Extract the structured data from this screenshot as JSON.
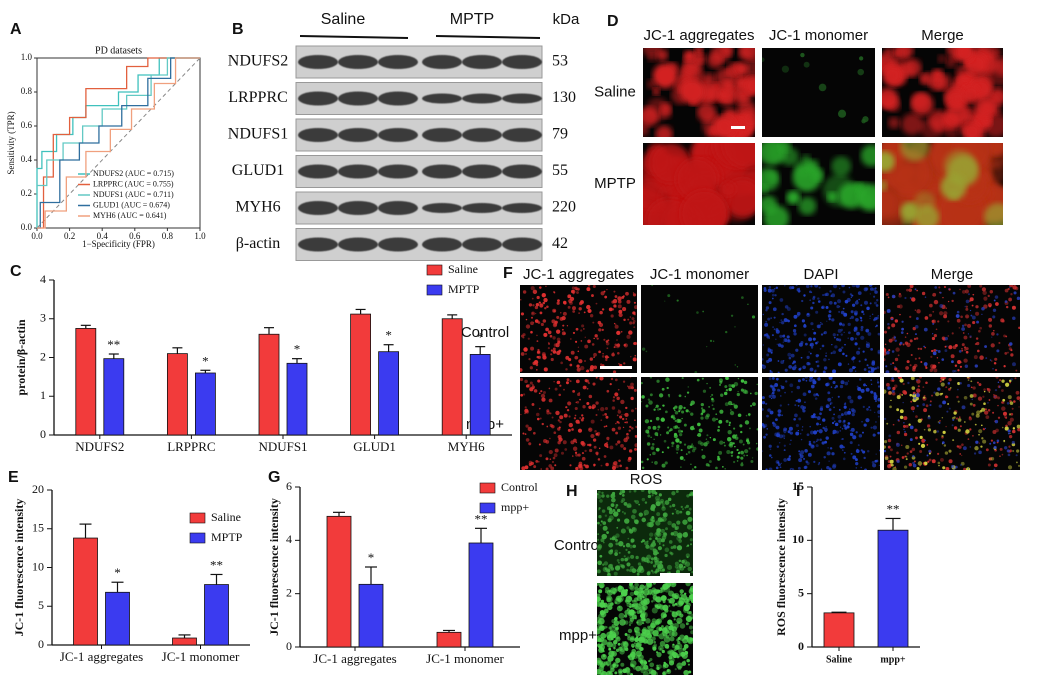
{
  "figure": {
    "panel_labels": [
      "A",
      "B",
      "C",
      "D",
      "E",
      "F",
      "G",
      "H",
      "I"
    ]
  },
  "blot": {
    "groups": [
      "Saline",
      "MPTP"
    ],
    "unit": "kDa",
    "rows": [
      {
        "protein": "NDUFS2",
        "kda": 53
      },
      {
        "protein": "LRPPRC",
        "kda": 130
      },
      {
        "protein": "NDUFS1",
        "kda": 79
      },
      {
        "protein": "GLUD1",
        "kda": 55
      },
      {
        "protein": "MYH6",
        "kda": 220
      },
      {
        "protein": "β-actin",
        "kda": 42
      }
    ]
  },
  "panel_d": {
    "columns": [
      "JC-1 aggregates",
      "JC-1 monomer",
      "Merge"
    ],
    "rows": [
      "Saline",
      "MPTP"
    ]
  },
  "panel_f": {
    "columns": [
      "JC-1 aggregates",
      "JC-1 monomer",
      "DAPI",
      "Merge"
    ],
    "rows": [
      "Control",
      "mpp+"
    ]
  },
  "panel_h": {
    "title": "ROS",
    "rows": [
      "Control",
      "mpp+"
    ]
  },
  "chart_data": [
    {
      "type": "line",
      "title": "PD datasets",
      "x_label": "1−Specificity (FPR)",
      "y_label": "Sensitivity (TPR)",
      "xlim": [
        0,
        1
      ],
      "ylim": [
        0,
        1
      ],
      "xticks": [
        {
          "value": 0,
          "label": "0.0"
        },
        0.2,
        0.4,
        0.6,
        0.8,
        {
          "value": 1,
          "label": "1.0"
        }
      ],
      "yticks": [
        {
          "value": 0,
          "label": "0.0"
        },
        0.2,
        0.4,
        0.6,
        0.8,
        {
          "value": 1,
          "label": "1.0"
        }
      ],
      "series": [
        {
          "name": "NDUFS2 (AUC = 0.715)",
          "color": "#3fc1bd",
          "x": [
            0,
            0,
            0.03,
            0.03,
            0.12,
            0.12,
            0.22,
            0.22,
            0.3,
            0.3,
            0.5,
            0.5,
            0.62,
            0.62,
            0.75,
            0.75,
            1
          ],
          "values": [
            0,
            0.35,
            0.35,
            0.45,
            0.45,
            0.55,
            0.55,
            0.65,
            0.65,
            0.72,
            0.72,
            0.8,
            0.8,
            0.9,
            0.9,
            1,
            1
          ]
        },
        {
          "name": "LRPPRC (AUC = 0.755)",
          "color": "#e2603e",
          "x": [
            0,
            0.04,
            0.04,
            0.1,
            0.1,
            0.2,
            0.2,
            0.3,
            0.3,
            0.45,
            0.45,
            0.55,
            0.55,
            0.68,
            0.68,
            1
          ],
          "values": [
            0,
            0,
            0.3,
            0.3,
            0.55,
            0.55,
            0.65,
            0.65,
            0.82,
            0.82,
            0.82,
            0.82,
            0.95,
            0.95,
            1,
            1
          ]
        },
        {
          "name": "NDUFS1 (AUC = 0.711)",
          "color": "#62c9c4",
          "x": [
            0,
            0,
            0.06,
            0.06,
            0.16,
            0.16,
            0.28,
            0.28,
            0.4,
            0.4,
            0.55,
            0.55,
            0.7,
            0.7,
            0.8,
            0.8,
            1
          ],
          "values": [
            0,
            0.25,
            0.25,
            0.4,
            0.4,
            0.5,
            0.5,
            0.6,
            0.6,
            0.7,
            0.7,
            0.78,
            0.78,
            0.9,
            0.9,
            1,
            1
          ]
        },
        {
          "name": "GLUD1 (AUC = 0.674)",
          "color": "#2f6e9e",
          "x": [
            0,
            0.02,
            0.02,
            0.14,
            0.14,
            0.26,
            0.26,
            0.38,
            0.38,
            0.52,
            0.52,
            0.68,
            0.68,
            0.82,
            0.82,
            1
          ],
          "values": [
            0,
            0,
            0.15,
            0.15,
            0.4,
            0.4,
            0.5,
            0.5,
            0.6,
            0.6,
            0.72,
            0.72,
            0.88,
            0.88,
            1,
            1
          ]
        },
        {
          "name": "MYH6 (AUC = 0.641)",
          "color": "#f0a07e",
          "x": [
            0,
            0.05,
            0.05,
            0.18,
            0.18,
            0.3,
            0.3,
            0.45,
            0.45,
            0.58,
            0.58,
            0.72,
            0.72,
            0.85,
            0.85,
            1
          ],
          "values": [
            0,
            0,
            0.1,
            0.1,
            0.3,
            0.3,
            0.45,
            0.45,
            0.58,
            0.58,
            0.7,
            0.7,
            0.85,
            0.85,
            1,
            1
          ]
        }
      ]
    },
    {
      "type": "bar",
      "y_label": "protein/β-actin",
      "categories": [
        "NDUFS2",
        "LRPPRC",
        "NDUFS1",
        "GLUD1",
        "MYH6"
      ],
      "ylim": [
        0,
        4
      ],
      "yticks": [
        0,
        1,
        2,
        3,
        4
      ],
      "series": [
        {
          "name": "Saline",
          "color": "#f23b3b",
          "values": [
            2.75,
            2.1,
            2.6,
            3.12,
            3.0
          ],
          "errors": [
            0.08,
            0.15,
            0.17,
            0.12,
            0.1
          ]
        },
        {
          "name": "MPTP",
          "color": "#3b3bf0",
          "values": [
            1.97,
            1.6,
            1.85,
            2.15,
            2.08
          ],
          "errors": [
            0.12,
            0.07,
            0.12,
            0.18,
            0.2
          ],
          "annotations": [
            "**",
            "*",
            "*",
            "*",
            "*"
          ]
        }
      ]
    },
    {
      "type": "bar",
      "y_label": "JC-1 fluorescence intensity",
      "categories": [
        "JC-1 aggregates",
        "JC-1 monomer"
      ],
      "ylim": [
        0,
        20
      ],
      "yticks": [
        0,
        5,
        10,
        15,
        20
      ],
      "series": [
        {
          "name": "Saline",
          "color": "#f23b3b",
          "values": [
            13.8,
            0.9
          ],
          "errors": [
            1.8,
            0.4
          ]
        },
        {
          "name": "MPTP",
          "color": "#3b3bf0",
          "values": [
            6.8,
            7.8
          ],
          "errors": [
            1.3,
            1.3
          ],
          "annotations": [
            "*",
            "**"
          ]
        }
      ]
    },
    {
      "type": "bar",
      "y_label": "JC-1 fluorescence intensity",
      "categories": [
        "JC-1 aggregates",
        "JC-1 monomer"
      ],
      "ylim": [
        0,
        6
      ],
      "yticks": [
        0,
        2,
        4,
        6
      ],
      "series": [
        {
          "name": "Control",
          "color": "#f23b3b",
          "values": [
            4.9,
            0.55
          ],
          "errors": [
            0.15,
            0.07
          ]
        },
        {
          "name": "mpp+",
          "color": "#3b3bf0",
          "values": [
            2.35,
            3.9
          ],
          "errors": [
            0.65,
            0.55
          ],
          "annotations": [
            "*",
            "**"
          ]
        }
      ]
    },
    {
      "type": "bar",
      "y_label": "ROS fluorescence intensity",
      "categories": [
        "Saline",
        "mpp+"
      ],
      "ylim": [
        0,
        15
      ],
      "yticks": [
        0,
        5,
        10,
        15
      ],
      "series": [
        {
          "colors": [
            "#f23b3b",
            "#3b3bf0"
          ],
          "values": [
            3.2,
            10.95
          ],
          "errors": [
            0.06,
            1.1
          ],
          "annotations": [
            null,
            "**"
          ]
        }
      ]
    }
  ]
}
